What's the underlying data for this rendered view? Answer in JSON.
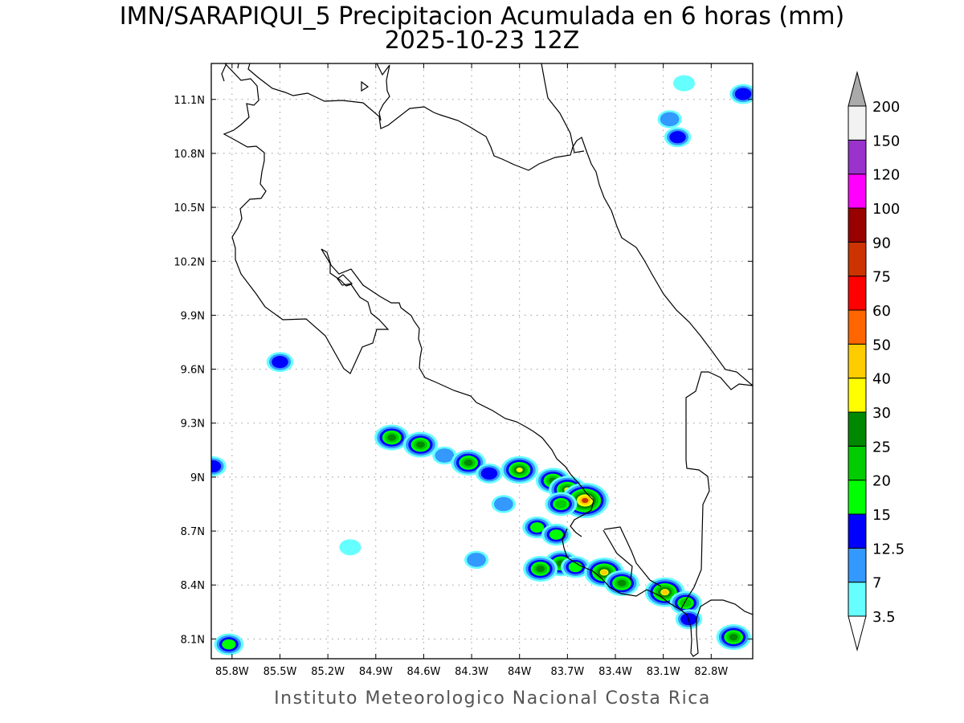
{
  "title": {
    "line1": "IMN/SARAPIQUI_5 Precipitacion Acumulada en 6 horas (mm)",
    "line2": "2025-10-23 12Z"
  },
  "footer": "Instituto Meteorologico Nacional Costa Rica",
  "axes": {
    "lon_range": [
      -85.93,
      -82.54
    ],
    "lat_range": [
      7.99,
      11.3
    ],
    "x_ticks": [
      {
        "value": -85.8,
        "label": "85.8W"
      },
      {
        "value": -85.5,
        "label": "85.5W"
      },
      {
        "value": -85.2,
        "label": "85.2W"
      },
      {
        "value": -84.9,
        "label": "84.9W"
      },
      {
        "value": -84.6,
        "label": "84.6W"
      },
      {
        "value": -84.3,
        "label": "84.3W"
      },
      {
        "value": -84.0,
        "label": "84W"
      },
      {
        "value": -83.7,
        "label": "83.7W"
      },
      {
        "value": -83.4,
        "label": "83.4W"
      },
      {
        "value": -83.1,
        "label": "83.1W"
      },
      {
        "value": -82.8,
        "label": "82.8W"
      }
    ],
    "y_ticks": [
      {
        "value": 11.1,
        "label": "11.1N"
      },
      {
        "value": 10.8,
        "label": "10.8N"
      },
      {
        "value": 10.5,
        "label": "10.5N"
      },
      {
        "value": 10.2,
        "label": "10.2N"
      },
      {
        "value": 9.9,
        "label": "9.9N"
      },
      {
        "value": 9.6,
        "label": "9.6N"
      },
      {
        "value": 9.3,
        "label": "9.3N"
      },
      {
        "value": 9.0,
        "label": "9N"
      },
      {
        "value": 8.7,
        "label": "8.7N"
      },
      {
        "value": 8.4,
        "label": "8.4N"
      },
      {
        "value": 8.1,
        "label": "8.1N"
      }
    ],
    "grid": true
  },
  "colorbar": {
    "levels": [
      "3.5",
      "7",
      "12.5",
      "15",
      "20",
      "25",
      "30",
      "40",
      "50",
      "60",
      "75",
      "90",
      "100",
      "120",
      "150",
      "200"
    ],
    "colors": [
      "#ffffff",
      "#66ffff",
      "#3399ff",
      "#0000ff",
      "#00ff00",
      "#00cc00",
      "#008800",
      "#ffff00",
      "#ffcc00",
      "#ff6600",
      "#ff0000",
      "#cc3300",
      "#990000",
      "#ff00ff",
      "#9933cc",
      "#f2f2f2",
      "#aaaaaa"
    ]
  },
  "chart_data": {
    "type": "heatmap",
    "variable": "Precipitacion Acumulada en 6 horas (mm)",
    "cells": [
      {
        "lon": -85.5,
        "lat": 9.64,
        "level": 12.5
      },
      {
        "lon": -84.8,
        "lat": 9.22,
        "level": 25
      },
      {
        "lon": -84.62,
        "lat": 9.18,
        "level": 25
      },
      {
        "lon": -84.47,
        "lat": 9.12,
        "level": 7
      },
      {
        "lon": -84.32,
        "lat": 9.08,
        "level": 25
      },
      {
        "lon": -84.19,
        "lat": 9.02,
        "level": 12.5
      },
      {
        "lon": -84.0,
        "lat": 9.04,
        "level": 30
      },
      {
        "lon": -83.79,
        "lat": 8.98,
        "level": 25
      },
      {
        "lon": -83.7,
        "lat": 8.93,
        "level": 30
      },
      {
        "lon": -83.59,
        "lat": 8.87,
        "level": 75
      },
      {
        "lon": -83.74,
        "lat": 8.85,
        "level": 20
      },
      {
        "lon": -83.89,
        "lat": 8.72,
        "level": 15
      },
      {
        "lon": -83.77,
        "lat": 8.68,
        "level": 15
      },
      {
        "lon": -83.74,
        "lat": 8.52,
        "level": 25
      },
      {
        "lon": -83.87,
        "lat": 8.49,
        "level": 25
      },
      {
        "lon": -83.65,
        "lat": 8.5,
        "level": 15
      },
      {
        "lon": -83.47,
        "lat": 8.47,
        "level": 40
      },
      {
        "lon": -83.36,
        "lat": 8.41,
        "level": 25
      },
      {
        "lon": -83.09,
        "lat": 8.36,
        "level": 40
      },
      {
        "lon": -82.96,
        "lat": 8.3,
        "level": 20
      },
      {
        "lon": -82.94,
        "lat": 8.21,
        "level": 12.5
      },
      {
        "lon": -82.66,
        "lat": 8.11,
        "level": 25
      },
      {
        "lon": -85.82,
        "lat": 8.07,
        "level": 15
      },
      {
        "lon": -85.92,
        "lat": 9.06,
        "level": 12.5
      },
      {
        "lon": -83.01,
        "lat": 10.89,
        "level": 12.5
      },
      {
        "lon": -83.06,
        "lat": 10.99,
        "level": 7
      },
      {
        "lon": -82.6,
        "lat": 11.13,
        "level": 12.5
      },
      {
        "lon": -82.97,
        "lat": 11.19,
        "level": 3.5
      },
      {
        "lon": -85.06,
        "lat": 8.61,
        "level": 3.5
      },
      {
        "lon": -84.27,
        "lat": 8.54,
        "level": 7
      },
      {
        "lon": -84.1,
        "lat": 8.85,
        "level": 7
      }
    ]
  }
}
